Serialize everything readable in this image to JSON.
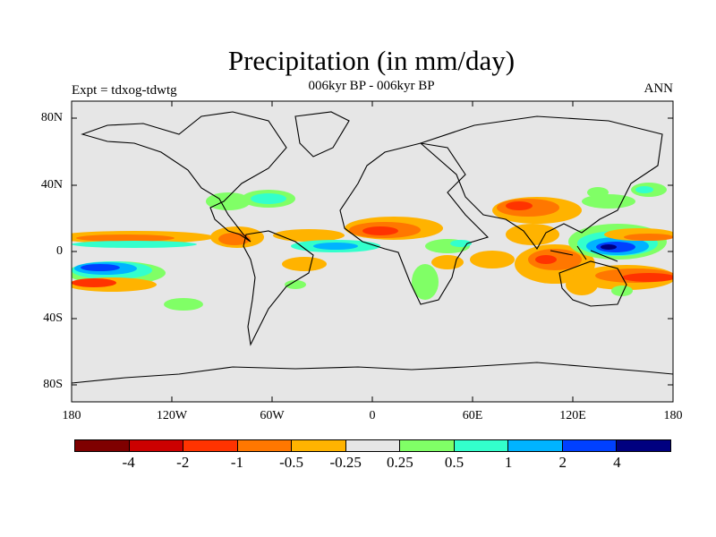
{
  "figure": {
    "title": "Precipitation (in mm/day)",
    "experiment": "Expt = tdxog-tdwtg",
    "period": "006kyr BP - 006kyr BP",
    "season": "ANN"
  },
  "axes": {
    "y_labels": [
      "80N",
      "40N",
      "0",
      "40S",
      "80S"
    ],
    "x_labels": [
      "180",
      "120W",
      "60W",
      "0",
      "60E",
      "120E",
      "180"
    ]
  },
  "colorbar": {
    "colors": [
      "#7f0000",
      "#cc0000",
      "#ff3300",
      "#ff7700",
      "#ffb300",
      "#e6e6e6",
      "#80ff66",
      "#33ffcc",
      "#00b3ff",
      "#0040ff",
      "#000080"
    ],
    "labels": [
      "-4",
      "-2",
      "-1",
      "-0.5",
      "-0.25",
      "0.25",
      "0.5",
      "1",
      "2",
      "4"
    ]
  },
  "map": {
    "background_color": "#e6e6e6",
    "lon_range": [
      -180,
      180
    ],
    "lat_range": [
      -90,
      90
    ]
  }
}
